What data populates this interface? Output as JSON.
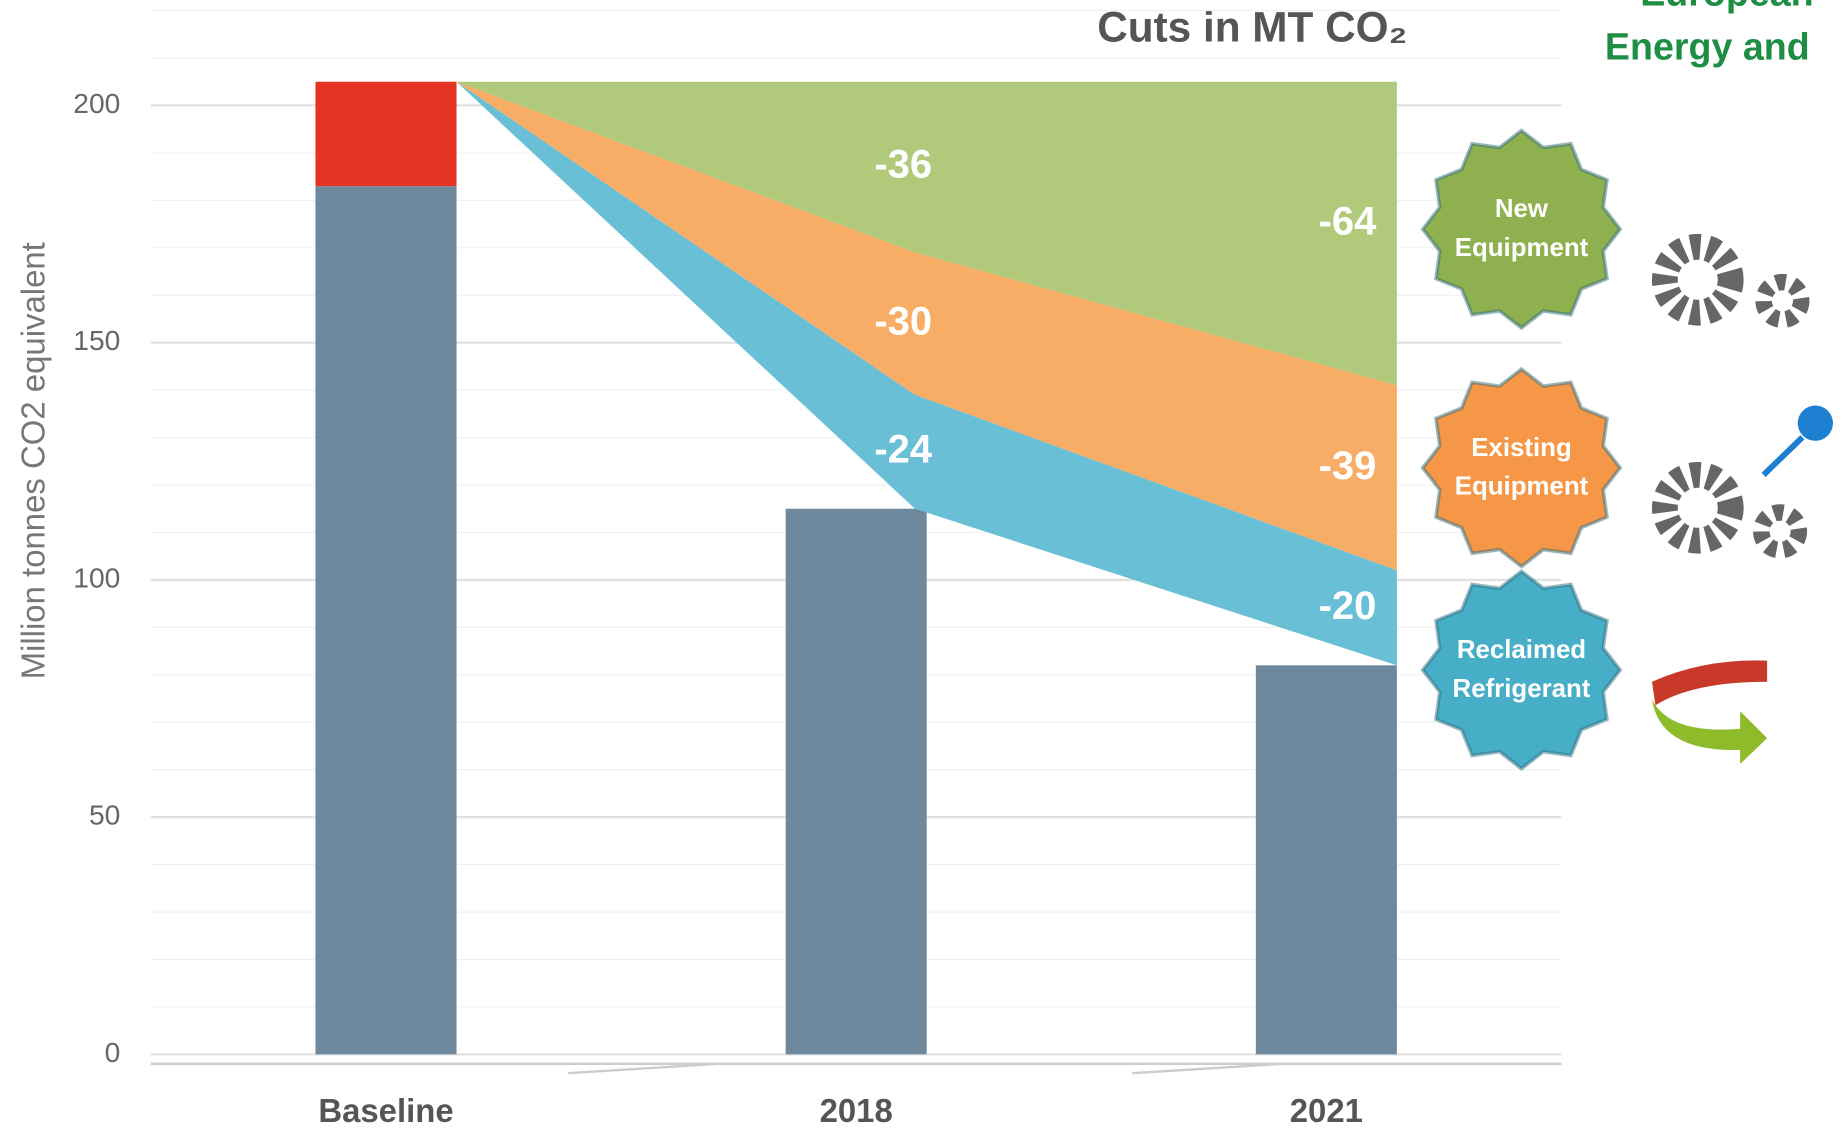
{
  "chart_data": {
    "type": "bar",
    "title": "Cuts in MT CO₂",
    "header_lines": [
      "European",
      "Energy and"
    ],
    "y_label": "Million tonnes CO2 equivalent",
    "categories": [
      "Baseline",
      "2018",
      "2021"
    ],
    "series": [
      {
        "color": "#6e889e",
        "values": [
          183,
          115,
          82
        ]
      },
      {
        "color": "#e53424",
        "values": [
          22,
          null,
          null
        ]
      }
    ],
    "cuts": [
      {
        "label": [
          "New",
          "Equipment"
        ],
        "color": "#b1c97a",
        "badge_color": "#8fb04e",
        "values": [
          -36,
          -64
        ]
      },
      {
        "label": [
          "Existing",
          "Equipment"
        ],
        "color": "#f7ad66",
        "badge_color": "#f59746",
        "values": [
          -30,
          -39
        ]
      },
      {
        "label": [
          "Reclaimed",
          "Refrigerant"
        ],
        "color": "#68bfd6",
        "badge_color": "#46aec6",
        "values": [
          -24,
          -20
        ]
      }
    ],
    "ylim": [
      0,
      220
    ],
    "yticks": [
      0,
      50,
      100,
      150,
      200
    ],
    "grid": true
  }
}
